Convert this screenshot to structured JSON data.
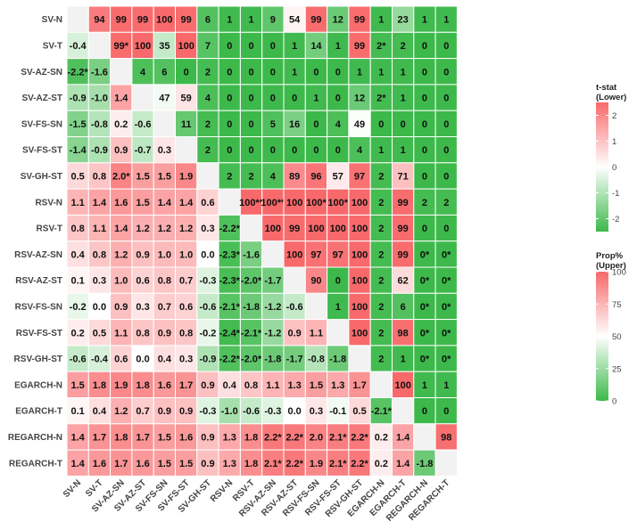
{
  "chart_data": {
    "type": "heatmap",
    "labels": [
      "SV-N",
      "SV-T",
      "SV-AZ-SN",
      "SV-AZ-ST",
      "SV-FS-SN",
      "SV-FS-ST",
      "SV-GH-ST",
      "RSV-N",
      "RSV-T",
      "RSV-AZ-SN",
      "RSV-AZ-ST",
      "RSV-FS-SN",
      "RSV-FS-ST",
      "RSV-GH-ST",
      "EGARCH-N",
      "EGARCH-T",
      "REGARCH-N",
      "REGARCH-T"
    ],
    "cells": [
      [
        "",
        "94",
        "99",
        "99",
        "100",
        "99",
        "6",
        "1",
        "1",
        "9",
        "54",
        "99",
        "12",
        "99",
        "1",
        "23",
        "1",
        "1"
      ],
      [
        "-0.4",
        "",
        "99*",
        "100",
        "35",
        "100",
        "7",
        "0",
        "0",
        "0",
        "1",
        "14",
        "1",
        "99",
        "2*",
        "2",
        "0",
        "0"
      ],
      [
        "-2.2*",
        "-1.6",
        "",
        "4",
        "6",
        "0",
        "2",
        "0",
        "0",
        "0",
        "1",
        "0",
        "0",
        "1",
        "1",
        "1",
        "0",
        "0"
      ],
      [
        "-0.9",
        "-1.0",
        "1.4",
        "",
        "47",
        "59",
        "4",
        "0",
        "0",
        "0",
        "0",
        "1",
        "0",
        "12",
        "2*",
        "1",
        "0",
        "0"
      ],
      [
        "-1.5",
        "-0.8",
        "0.2",
        "-0.6",
        "",
        "11",
        "2",
        "0",
        "0",
        "5",
        "16",
        "0",
        "4",
        "49",
        "0",
        "0",
        "0",
        "0"
      ],
      [
        "-1.4",
        "-0.9",
        "0.9",
        "-0.7",
        "0.3",
        "",
        "2",
        "0",
        "0",
        "0",
        "0",
        "0",
        "0",
        "4",
        "1",
        "1",
        "0",
        "0"
      ],
      [
        "0.5",
        "0.8",
        "2.0*",
        "1.5",
        "1.5",
        "1.9",
        "",
        "2",
        "2",
        "4",
        "89",
        "96",
        "57",
        "97",
        "2",
        "71",
        "0",
        "0"
      ],
      [
        "1.1",
        "1.4",
        "1.6",
        "1.5",
        "1.4",
        "1.4",
        "0.6",
        "",
        "100**",
        "100**",
        "100",
        "100*",
        "100*",
        "100",
        "2",
        "99",
        "2",
        "2"
      ],
      [
        "0.8",
        "1.1",
        "1.4",
        "1.2",
        "1.2",
        "1.2",
        "0.3",
        "-2.2*",
        "",
        "100",
        "99",
        "100",
        "100",
        "100",
        "2",
        "99",
        "0",
        "0"
      ],
      [
        "0.4",
        "0.8",
        "1.2",
        "0.9",
        "1.0",
        "1.0",
        "0.0",
        "-2.3*",
        "-1.6",
        "",
        "100",
        "97",
        "97",
        "100",
        "2",
        "99",
        "0*",
        "0*"
      ],
      [
        "0.1",
        "0.3",
        "1.0",
        "0.6",
        "0.8",
        "0.7",
        "-0.3",
        "-2.3*",
        "-2.0*",
        "-1.7",
        "",
        "90",
        "0",
        "100",
        "2",
        "62",
        "0*",
        "0*"
      ],
      [
        "-0.2",
        "0.0",
        "0.9",
        "0.3",
        "0.7",
        "0.6",
        "-0.6",
        "-2.1*",
        "-1.8",
        "-1.2",
        "-0.6",
        "",
        "1",
        "100",
        "2",
        "6",
        "0*",
        "0*"
      ],
      [
        "0.2",
        "0.5",
        "1.1",
        "0.8",
        "0.9",
        "0.8",
        "-0.2",
        "-2.4*",
        "-2.1*",
        "-1.2",
        "0.9",
        "1.1",
        "",
        "100",
        "2",
        "98",
        "0*",
        "0*"
      ],
      [
        "-0.6",
        "-0.4",
        "0.6",
        "0.0",
        "0.4",
        "0.3",
        "-0.9",
        "-2.2*",
        "-2.0*",
        "-1.8",
        "-1.7",
        "-0.8",
        "-1.8",
        "",
        "2",
        "1",
        "0*",
        "0*"
      ],
      [
        "1.5",
        "1.8",
        "1.9",
        "1.8",
        "1.6",
        "1.7",
        "0.9",
        "0.4",
        "0.8",
        "1.1",
        "1.3",
        "1.5",
        "1.3",
        "1.7",
        "",
        "100",
        "1",
        "1"
      ],
      [
        "0.1",
        "0.4",
        "1.2",
        "0.7",
        "0.9",
        "0.9",
        "-0.3",
        "-1.0",
        "-0.6",
        "-0.3",
        "0.0",
        "0.3",
        "-0.1",
        "0.5",
        "-2.1*",
        "",
        "0",
        "0"
      ],
      [
        "1.4",
        "1.7",
        "1.8",
        "1.7",
        "1.5",
        "1.6",
        "0.9",
        "1.3",
        "1.8",
        "2.2*",
        "2.2*",
        "2.0",
        "2.1*",
        "2.2*",
        "0.2",
        "1.4",
        "",
        "98"
      ],
      [
        "1.4",
        "1.6",
        "1.7",
        "1.6",
        "1.5",
        "1.5",
        "0.9",
        "1.3",
        "1.8",
        "2.1*",
        "2.2*",
        "1.9",
        "2.1*",
        "2.2*",
        "0.2",
        "1.4",
        "-1.8",
        ""
      ]
    ],
    "legend_lower": {
      "title": [
        "t-stat",
        "(Lower)"
      ],
      "ticks": [
        "2",
        "1",
        "0",
        "-1",
        "-2"
      ],
      "tick_values": [
        2,
        1,
        0,
        -1,
        -2
      ],
      "range": [
        -2.5,
        2.5
      ]
    },
    "legend_upper": {
      "title": [
        "Prop%",
        "(Upper)"
      ],
      "ticks": [
        "100",
        "75",
        "50",
        "25",
        "0"
      ],
      "tick_values": [
        100,
        75,
        50,
        25,
        0
      ],
      "range": [
        0,
        100
      ]
    },
    "legend_placement": "right"
  },
  "colors": {
    "positive": "#f8696b",
    "negative": "#3cb94a",
    "mid": "#ffffff",
    "diagonal": "#f2f2f2"
  }
}
